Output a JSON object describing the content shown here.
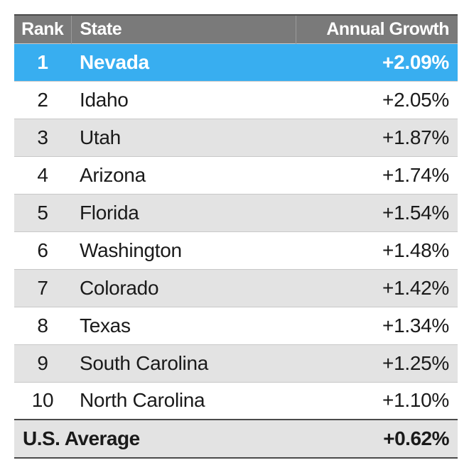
{
  "chart_data": {
    "type": "table",
    "columns": [
      "Rank",
      "State",
      "Annual Growth"
    ],
    "rows": [
      {
        "rank": "1",
        "state": "Nevada",
        "growth": "+2.09%",
        "value": 2.09
      },
      {
        "rank": "2",
        "state": "Idaho",
        "growth": "+2.05%",
        "value": 2.05
      },
      {
        "rank": "3",
        "state": "Utah",
        "growth": "+1.87%",
        "value": 1.87
      },
      {
        "rank": "4",
        "state": "Arizona",
        "growth": "+1.74%",
        "value": 1.74
      },
      {
        "rank": "5",
        "state": "Florida",
        "growth": "+1.54%",
        "value": 1.54
      },
      {
        "rank": "6",
        "state": "Washington",
        "growth": "+1.48%",
        "value": 1.48
      },
      {
        "rank": "7",
        "state": "Colorado",
        "growth": "+1.42%",
        "value": 1.42
      },
      {
        "rank": "8",
        "state": "Texas",
        "growth": "+1.34%",
        "value": 1.34
      },
      {
        "rank": "9",
        "state": "South Carolina",
        "growth": "+1.25%",
        "value": 1.25
      },
      {
        "rank": "10",
        "state": "North Carolina",
        "growth": "+1.10%",
        "value": 1.1
      }
    ],
    "footer": {
      "label": "U.S. Average",
      "growth": "+0.62%",
      "value": 0.62
    },
    "highlighted_row": 0
  },
  "colors": {
    "header_bg": "#7a7a7a",
    "highlight_bg": "#38aef0",
    "stripe_bg": "#e3e3e3"
  }
}
